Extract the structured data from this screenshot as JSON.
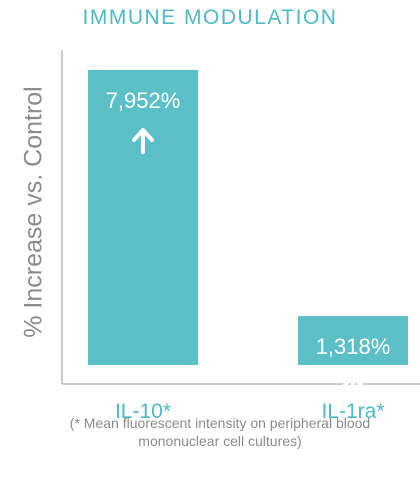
{
  "chart_data": {
    "type": "bar",
    "title": "IMMUNE MODULATION",
    "ylabel": "% Increase vs. Control",
    "xlabel": "",
    "categories": [
      "IL-10*",
      "IL-1ra*"
    ],
    "values": [
      7952,
      1318
    ],
    "data_labels": [
      "7,952%",
      "1,318%"
    ],
    "grid": false,
    "legend": "none",
    "colors": {
      "bar": "#5bbfc8",
      "label": "#ffffff",
      "title": "#4fbac4",
      "axis": "#9a9a9a",
      "tick": "#4fbac4",
      "text": "#8c8c8c"
    },
    "icon": "arrow-up-icon",
    "footnote": "(* Mean fluorescent intensity on peripheral blood mononuclear cell cultures)"
  }
}
